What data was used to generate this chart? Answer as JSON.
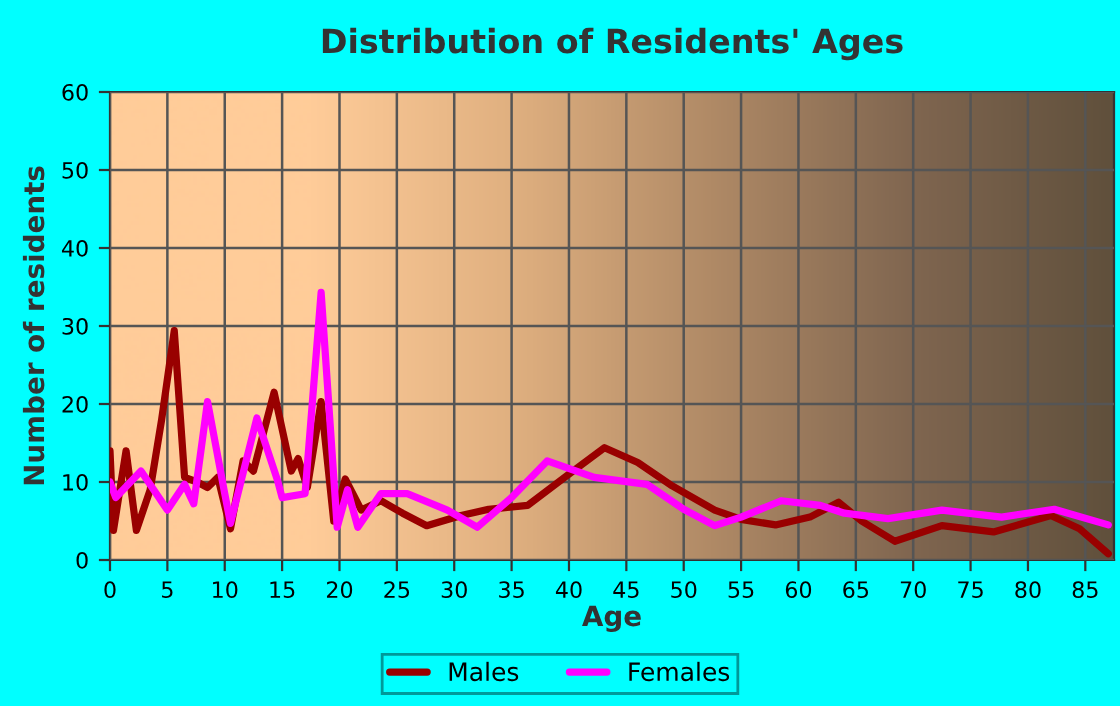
{
  "chart_data": {
    "type": "line",
    "title": "Distribution of Residents' Ages",
    "xlabel": "Age",
    "ylabel": "Number of residents",
    "xlim": [
      0,
      87.5
    ],
    "xticks": [
      0,
      5,
      10,
      15,
      20,
      25,
      30,
      35,
      40,
      45,
      50,
      55,
      60,
      65,
      70,
      75,
      80,
      85
    ],
    "ylim": [
      0,
      60
    ],
    "yticks": [
      0,
      10,
      20,
      30,
      40,
      50,
      60
    ],
    "grid": true,
    "legend": "bottom",
    "series": [
      {
        "name": "Males",
        "color": "#990000",
        "x": [
          0,
          0.3,
          1.4,
          2.3,
          3.5,
          4.5,
          5.6,
          6.5,
          7.6,
          8.5,
          9.4,
          10.5,
          11.6,
          12.5,
          14.3,
          15.8,
          16.4,
          17.2,
          18.4,
          19.5,
          20.5,
          21.9,
          23.6,
          25.5,
          27.6,
          30.6,
          33,
          36.4,
          40,
          43.1,
          46,
          49,
          52.7,
          55,
          58,
          61,
          63.5,
          65.5,
          68.4,
          72.5,
          77,
          82,
          84.5,
          87
        ],
        "values": [
          14,
          3.8,
          14,
          3.8,
          9,
          18,
          29.4,
          10.6,
          10,
          9.3,
          10.6,
          4,
          12.7,
          11.4,
          21.5,
          11.4,
          13,
          9.3,
          20.3,
          5,
          10.4,
          6.4,
          7.6,
          6,
          4.4,
          5.7,
          6.5,
          7,
          11,
          14.4,
          12.5,
          9.5,
          6.4,
          5.2,
          4.5,
          5.5,
          7.4,
          5,
          2.4,
          4.4,
          3.6,
          5.7,
          4,
          0.8
        ]
      },
      {
        "name": "Females",
        "color": "#ff00ff",
        "x": [
          0,
          0.5,
          2.7,
          5,
          6.5,
          7.3,
          8.5,
          10,
          10.5,
          12.8,
          14.6,
          15,
          17,
          18.4,
          19.8,
          20.7,
          21.6,
          23.6,
          25.9,
          29.4,
          32,
          35,
          38.1,
          42.2,
          46.8,
          50,
          52.7,
          55,
          58.5,
          61.9,
          64,
          67.8,
          72.5,
          77.7,
          82.3,
          87
        ],
        "values": [
          10,
          8,
          11.4,
          6.4,
          9.7,
          7.2,
          20.3,
          8.5,
          4.7,
          18.2,
          10.2,
          8,
          8.5,
          34.3,
          4.2,
          9,
          4.2,
          8.5,
          8.5,
          6.4,
          4.2,
          8,
          12.7,
          10.6,
          9.7,
          6.5,
          4.4,
          5.5,
          7.6,
          7,
          6,
          5.3,
          6.4,
          5.5,
          6.5,
          4.5
        ]
      }
    ]
  }
}
